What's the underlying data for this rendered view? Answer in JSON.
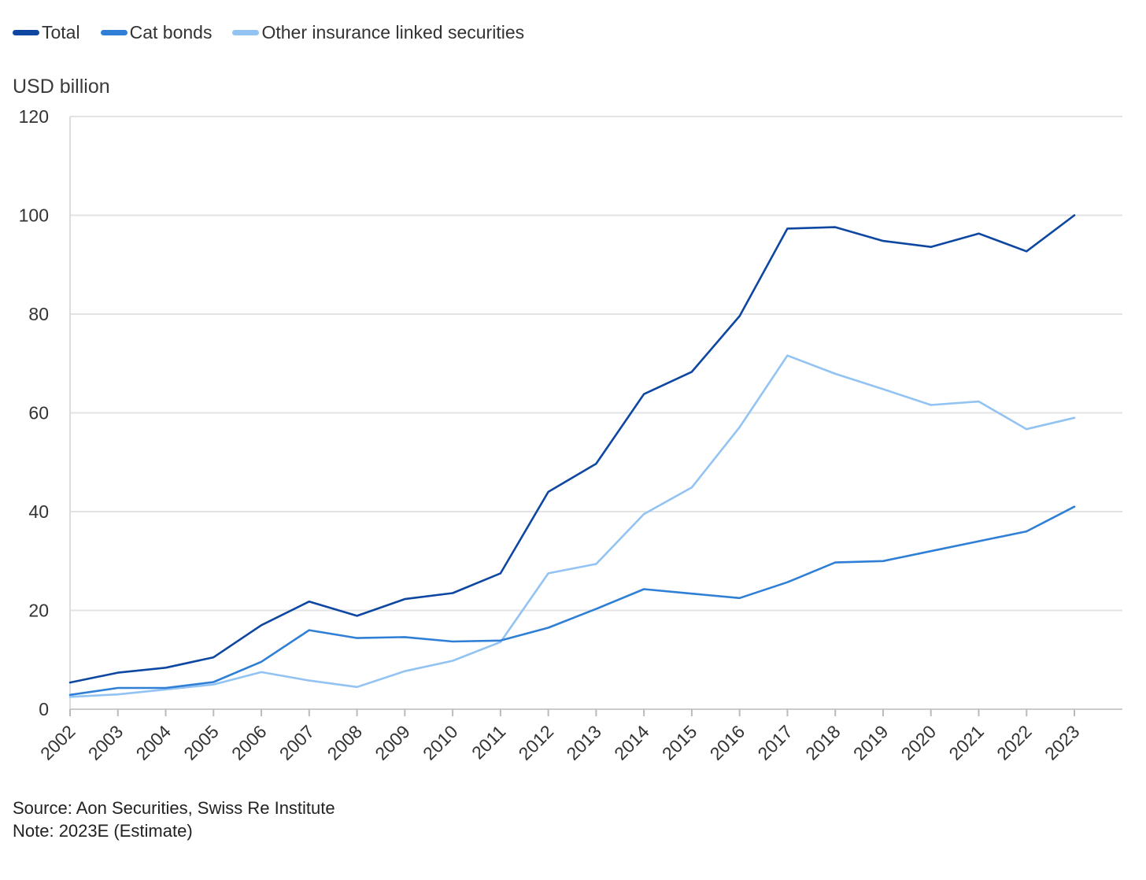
{
  "legend": [
    {
      "label": "Total",
      "color": "#0d47a1"
    },
    {
      "label": "Cat bonds",
      "color": "#2f7fd6"
    },
    {
      "label": "Other insurance linked securities",
      "color": "#92c3f2"
    }
  ],
  "y_unit": "USD billion",
  "footer": {
    "source": "Source: Aon Securities, Swiss Re Institute",
    "note": "Note: 2023E (Estimate)"
  },
  "chart_data": {
    "type": "line",
    "title": "",
    "xlabel": "",
    "ylabel": "USD billion",
    "x": [
      "2002",
      "2003",
      "2004",
      "2005",
      "2006",
      "2007",
      "2008",
      "2009",
      "2010",
      "2011",
      "2012",
      "2013",
      "2014",
      "2015",
      "2016",
      "2017",
      "2018",
      "2019",
      "2020",
      "2021",
      "2022",
      "2023"
    ],
    "ylim": [
      0,
      120
    ],
    "yticks": [
      0,
      20,
      40,
      60,
      80,
      100,
      120
    ],
    "grid": true,
    "legend_position": "top-left",
    "series": [
      {
        "name": "Total",
        "color": "#0d47a1",
        "values": [
          5.4,
          7.4,
          8.4,
          10.5,
          17,
          21.8,
          18.9,
          22.3,
          23.5,
          27.5,
          44,
          49.7,
          63.8,
          68.3,
          79.6,
          97.3,
          97.6,
          94.8,
          93.6,
          96.3,
          92.7,
          100
        ]
      },
      {
        "name": "Cat bonds",
        "color": "#2f7fd6",
        "values": [
          2.9,
          4.3,
          4.3,
          5.5,
          9.6,
          16,
          14.4,
          14.6,
          13.7,
          13.9,
          16.5,
          20.3,
          24.3,
          23.4,
          22.5,
          25.7,
          29.7,
          30,
          32,
          34,
          36,
          41
        ]
      },
      {
        "name": "Other insurance linked securities",
        "color": "#92c3f2",
        "values": [
          2.5,
          3.0,
          4.0,
          5.0,
          7.5,
          5.8,
          4.5,
          7.7,
          9.8,
          13.6,
          27.5,
          29.4,
          39.5,
          44.9,
          57.1,
          71.6,
          67.9,
          64.8,
          61.6,
          62.3,
          56.7,
          59
        ]
      }
    ]
  }
}
